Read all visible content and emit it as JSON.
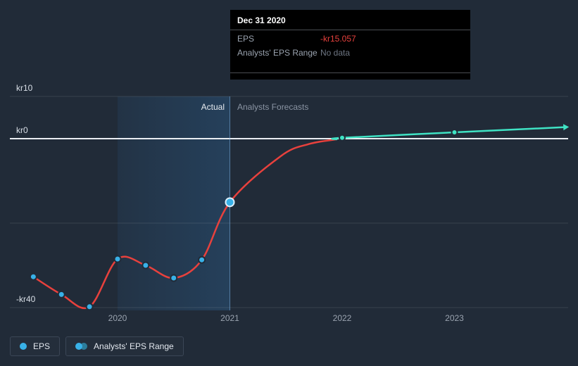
{
  "labels": {
    "actual": "Actual",
    "forecasts": "Analysts Forecasts"
  },
  "tooltip": {
    "title": "Dec 31 2020",
    "rows": [
      {
        "label": "EPS",
        "value": "-kr15.057",
        "value_style": "color:#e8413d"
      },
      {
        "label": "Analysts' EPS Range",
        "value": "No data",
        "value_style": "color:#6e7683"
      }
    ]
  },
  "legend": [
    {
      "label": "EPS"
    },
    {
      "label": "Analysts' EPS Range"
    }
  ],
  "colors": {
    "background": "#212b38",
    "actual_line": "#e8413d",
    "forecast_line": "#3fe3c4",
    "marker_blue": "#38b1e8",
    "zero_line": "#e9edf2",
    "grid_line": "rgba(255,255,255,0.10)",
    "band_fill": "#2e6da6",
    "divider_line": "rgba(125,180,235,0.55)",
    "axis_text": "#9aa3af",
    "y_axis_text": "#d9dfe7",
    "highlight_ring": "#ddeffb"
  },
  "chart_data": {
    "type": "line",
    "currency": "kr",
    "x_ticks": [
      {
        "label": "2020",
        "x": 2020
      },
      {
        "label": "2021",
        "x": 2021
      },
      {
        "label": "2022",
        "x": 2022
      },
      {
        "label": "2023",
        "x": 2023
      }
    ],
    "y_ticks": [
      {
        "label": "kr10",
        "value": 10
      },
      {
        "label": "kr0",
        "value": 0
      },
      {
        "label": "",
        "value": -20
      },
      {
        "label": "-kr40",
        "value": -40
      }
    ],
    "x_range": [
      2019.05,
      2024.0
    ],
    "y_range": [
      12,
      -42
    ],
    "band": {
      "from": 2020,
      "to": 2021
    },
    "divider_x": 2021,
    "series": [
      {
        "id": "eps-actual",
        "name": "EPS (Actual)",
        "color": "#e8413d",
        "marker_color": "#38b1e8",
        "marker_radius": 4.5,
        "points": [
          [
            2019.25,
            -32.7
          ],
          [
            2019.5,
            -36.9
          ],
          [
            2019.75,
            -39.8
          ],
          [
            2020.0,
            -28.5
          ],
          [
            2020.25,
            -30.0
          ],
          [
            2020.5,
            -33.0
          ],
          [
            2020.75,
            -28.7
          ],
          [
            2021.0,
            -15.057
          ],
          [
            2021.45,
            -4.2
          ],
          [
            2021.7,
            -1.3
          ],
          [
            2021.95,
            -0.15
          ]
        ],
        "markers": [
          [
            2019.25,
            -32.7
          ],
          [
            2019.5,
            -36.9
          ],
          [
            2019.75,
            -39.8
          ],
          [
            2020.0,
            -28.5
          ],
          [
            2020.25,
            -30.0
          ],
          [
            2020.5,
            -33.0
          ],
          [
            2020.75,
            -28.7
          ],
          [
            2021.0,
            -15.057
          ]
        ]
      },
      {
        "id": "eps-forecast",
        "name": "EPS (Analysts Forecasts)",
        "color": "#3fe3c4",
        "marker_color": "#3fe3c4",
        "marker_radius": 4,
        "points": [
          [
            2021.95,
            -0.15
          ],
          [
            2022.0,
            0.2
          ],
          [
            2023.0,
            1.5
          ],
          [
            2023.97,
            2.7
          ]
        ],
        "markers": [
          [
            2022.0,
            0.2
          ],
          [
            2023.0,
            1.5
          ]
        ]
      }
    ],
    "highlight_point": {
      "x": 2021.0,
      "y": -15.057
    }
  }
}
